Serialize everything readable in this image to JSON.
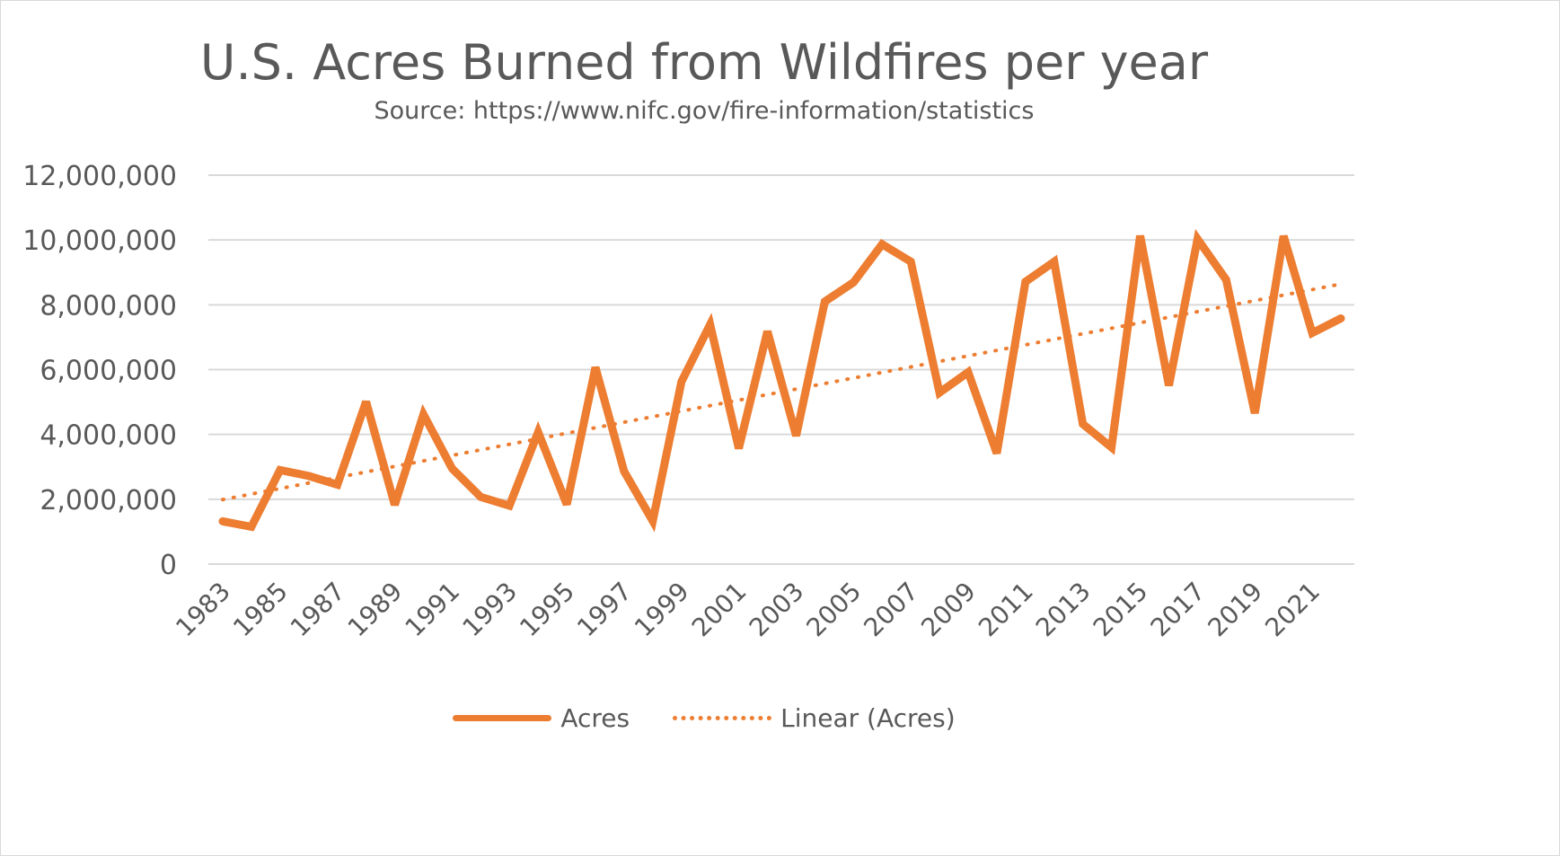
{
  "chart_data": {
    "type": "line",
    "title": "U.S. Acres Burned from Wildfires per year",
    "subtitle": "Source: https://www.nifc.gov/fire-information/statistics",
    "xlabel": "",
    "ylabel": "",
    "ylim": [
      0,
      12000000
    ],
    "y_ticks": [
      0,
      2000000,
      4000000,
      6000000,
      8000000,
      10000000,
      12000000
    ],
    "y_tick_labels": [
      "0",
      "2,000,000",
      "4,000,000",
      "6,000,000",
      "8,000,000",
      "10,000,000",
      "12,000,000"
    ],
    "x_tick_labels": [
      "1983",
      "1985",
      "1987",
      "1989",
      "1991",
      "1993",
      "1995",
      "1997",
      "1999",
      "2001",
      "2003",
      "2005",
      "2007",
      "2009",
      "2011",
      "2013",
      "2015",
      "2017",
      "2019",
      "2021"
    ],
    "grid": true,
    "legend_position": "bottom",
    "x": [
      1983,
      1984,
      1985,
      1986,
      1987,
      1988,
      1989,
      1990,
      1991,
      1992,
      1993,
      1994,
      1995,
      1996,
      1997,
      1998,
      1999,
      2000,
      2001,
      2002,
      2003,
      2004,
      2005,
      2006,
      2007,
      2008,
      2009,
      2010,
      2011,
      2012,
      2013,
      2014,
      2015,
      2016,
      2017,
      2018,
      2019,
      2020,
      2021,
      2022
    ],
    "series": [
      {
        "name": "Acres",
        "style": "solid",
        "color": "#ED7D31",
        "values": [
          1320000,
          1150000,
          2900000,
          2720000,
          2450000,
          5010000,
          1830000,
          4620000,
          2950000,
          2070000,
          1800000,
          4070000,
          1840000,
          6070000,
          2860000,
          1330000,
          5630000,
          7390000,
          3570000,
          7180000,
          3960000,
          8100000,
          8690000,
          9870000,
          9330000,
          5290000,
          5920000,
          3420000,
          8710000,
          9330000,
          4320000,
          3600000,
          10130000,
          5510000,
          10030000,
          8770000,
          4660000,
          10120000,
          7130000,
          7580000
        ]
      },
      {
        "name": "Linear (Acres)",
        "style": "dotted",
        "color": "#ED7D31",
        "type": "trendline",
        "values_at_ends": [
          1990000,
          8640000
        ]
      }
    ]
  },
  "legend": {
    "acres_label": "Acres",
    "linear_label": "Linear (Acres)"
  }
}
